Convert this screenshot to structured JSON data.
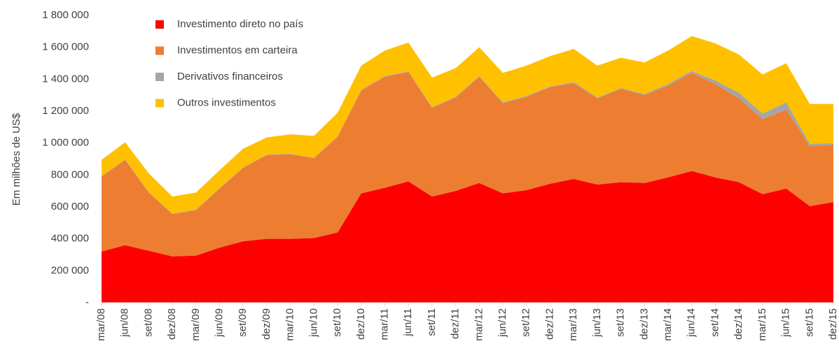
{
  "chart_data": {
    "type": "stacked_area",
    "y_label": "Em milhões de US$",
    "categories": [
      "mar/08",
      "jun/08",
      "set/08",
      "dez/08",
      "mar/09",
      "jun/09",
      "set/09",
      "dez/09",
      "mar/10",
      "jun/10",
      "set/10",
      "dez/10",
      "mar/11",
      "jun/11",
      "set/11",
      "dez/11",
      "mar/12",
      "jun/12",
      "set/12",
      "dez/12",
      "mar/13",
      "jun/13",
      "set/13",
      "dez/13",
      "mar/14",
      "jun/14",
      "set/14",
      "dez/14",
      "mar/15",
      "jun/15",
      "set/15",
      "dez/15"
    ],
    "series": [
      {
        "name": "Investimento direto no país",
        "color": "#ff0000",
        "values": [
          320000,
          360000,
          325000,
          290000,
          295000,
          345000,
          385000,
          400000,
          400000,
          405000,
          440000,
          685000,
          720000,
          760000,
          665000,
          700000,
          750000,
          685000,
          705000,
          745000,
          775000,
          740000,
          755000,
          750000,
          785000,
          825000,
          785000,
          755000,
          680000,
          715000,
          605000,
          630000
        ]
      },
      {
        "name": "Investimentos em carteira",
        "color": "#ed7d31",
        "values": [
          470000,
          535000,
          365000,
          265000,
          285000,
          370000,
          460000,
          525000,
          530000,
          500000,
          600000,
          645000,
          695000,
          685000,
          555000,
          585000,
          665000,
          565000,
          585000,
          605000,
          600000,
          540000,
          585000,
          550000,
          575000,
          615000,
          585000,
          525000,
          470000,
          495000,
          375000,
          360000
        ]
      },
      {
        "name": "Derivativos financeiros",
        "color": "#a5a5a5",
        "values": [
          3000,
          3000,
          3000,
          3000,
          3000,
          3000,
          3000,
          3000,
          3000,
          3000,
          3000,
          4000,
          5000,
          5000,
          5000,
          5000,
          5000,
          5000,
          5000,
          5000,
          8000,
          5000,
          5000,
          8000,
          10000,
          12000,
          22000,
          35000,
          35000,
          45000,
          15000,
          10000
        ]
      },
      {
        "name": "Outros investimentos",
        "color": "#ffc000",
        "values": [
          102000,
          107000,
          117000,
          107000,
          107000,
          112000,
          117000,
          107000,
          122000,
          137000,
          147000,
          151000,
          160000,
          180000,
          185000,
          180000,
          180000,
          185000,
          190000,
          190000,
          207000,
          200000,
          190000,
          197000,
          210000,
          218000,
          233000,
          240000,
          245000,
          245000,
          250000,
          245000
        ]
      }
    ],
    "ylim": [
      0,
      1800000
    ],
    "yticks": [
      {
        "value": 0,
        "label": "-"
      },
      {
        "value": 200000,
        "label": "200 000"
      },
      {
        "value": 400000,
        "label": "400 000"
      },
      {
        "value": 600000,
        "label": "600 000"
      },
      {
        "value": 800000,
        "label": "800 000"
      },
      {
        "value": 1000000,
        "label": "1 000 000"
      },
      {
        "value": 1200000,
        "label": "1 200 000"
      },
      {
        "value": 1400000,
        "label": "1 400 000"
      },
      {
        "value": 1600000,
        "label": "1 600 000"
      },
      {
        "value": 1800000,
        "label": "1 800 000"
      }
    ],
    "legend": "upper left"
  }
}
